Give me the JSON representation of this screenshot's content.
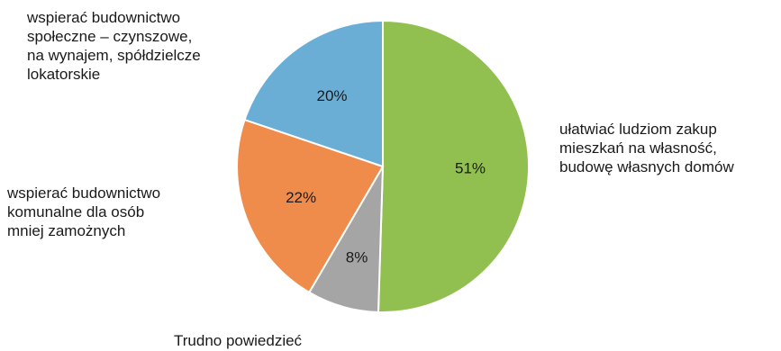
{
  "chart_data": {
    "type": "pie",
    "slices": [
      {
        "label": "ułatwiać ludziom zakup\nmieszkań na własność,\nbudowę własnych domów",
        "value": 51,
        "value_label": "51%",
        "color": "#92c050"
      },
      {
        "label": "Trudno powiedzieć",
        "value": 8,
        "value_label": "8%",
        "color": "#a5a5a5"
      },
      {
        "label": "wspierać budownictwo\nkomunalne dla osób\nmniej zamożnych",
        "value": 22,
        "value_label": "22%",
        "color": "#f08c4b"
      },
      {
        "label": "wspierać budownictwo\nspołeczne – czynszowe,\nna wynajem, spółdzielcze\nlokatorskie",
        "value": 20,
        "value_label": "20%",
        "color": "#6aaed6"
      }
    ]
  }
}
